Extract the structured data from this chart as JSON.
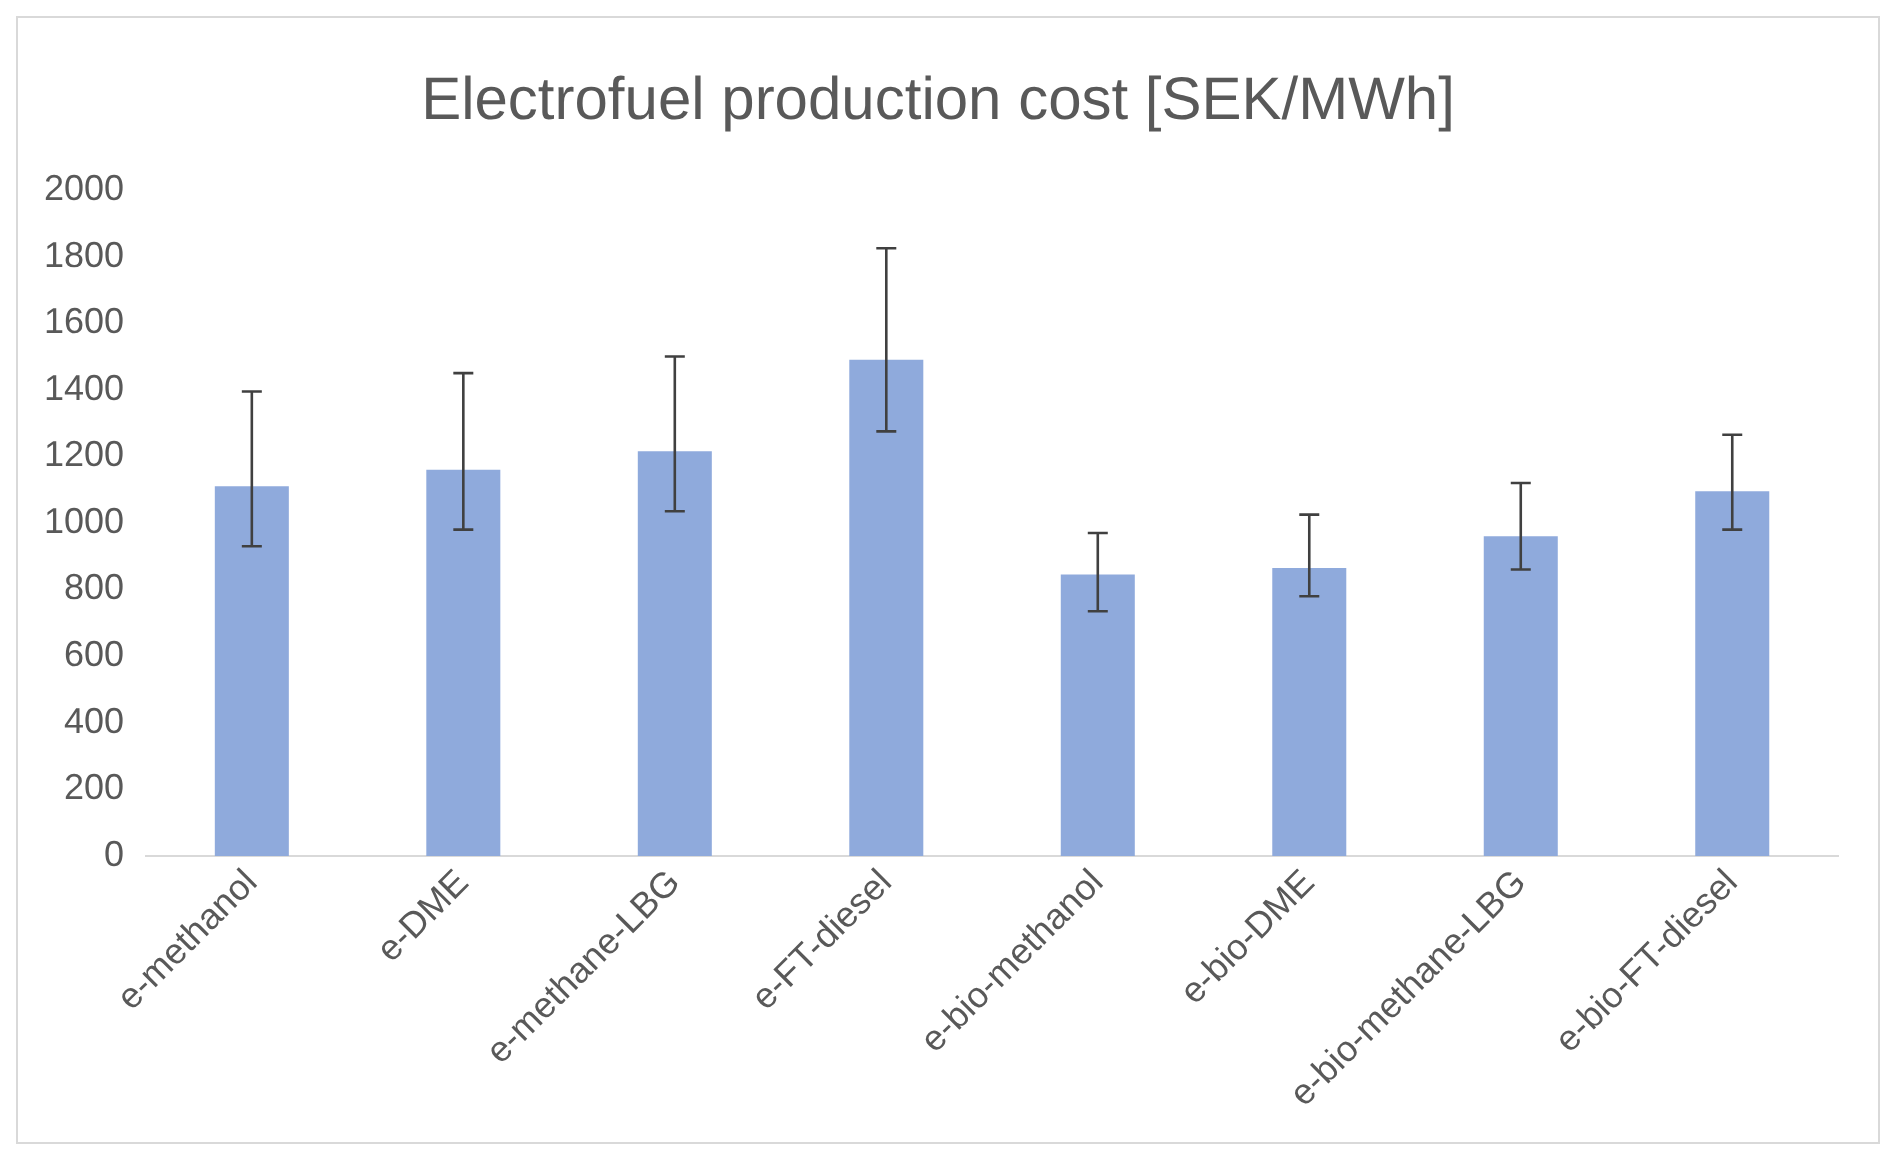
{
  "chart_data": {
    "type": "bar",
    "title": "Electrofuel production cost [SEK/MWh]",
    "categories": [
      "e-methanol",
      "e-DME",
      "e-methane-LBG",
      "e-FT-diesel",
      "e-bio-methanol",
      "e-bio-DME",
      "e-bio-methane-LBG",
      "e-bio-FT-diesel"
    ],
    "values": [
      1110,
      1160,
      1215,
      1490,
      845,
      865,
      960,
      1095
    ],
    "errors": [
      [
        930,
        1395
      ],
      [
        980,
        1450
      ],
      [
        1035,
        1500
      ],
      [
        1275,
        1825
      ],
      [
        735,
        970
      ],
      [
        780,
        1025
      ],
      [
        860,
        1120
      ],
      [
        980,
        1265
      ]
    ],
    "color": "#8faadc",
    "ylim": [
      0,
      2000
    ],
    "yticks": [
      0,
      200,
      400,
      600,
      800,
      1000,
      1200,
      1400,
      1600,
      1800,
      2000
    ],
    "grid": false,
    "legend": false
  }
}
